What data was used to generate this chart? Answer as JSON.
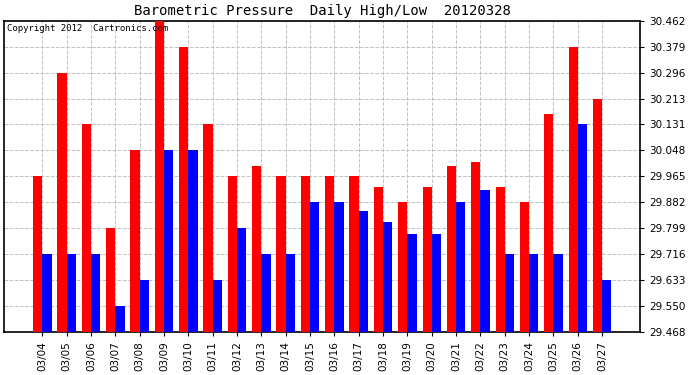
{
  "title": "Barometric Pressure  Daily High/Low  20120328",
  "copyright": "Copyright 2012  Cartronics.com",
  "categories": [
    "03/04",
    "03/05",
    "03/06",
    "03/07",
    "03/08",
    "03/09",
    "03/10",
    "03/11",
    "03/12",
    "03/13",
    "03/14",
    "03/15",
    "03/16",
    "03/17",
    "03/18",
    "03/19",
    "03/20",
    "03/21",
    "03/22",
    "03/23",
    "03/24",
    "03/25",
    "03/26",
    "03/27"
  ],
  "highs": [
    29.965,
    30.296,
    30.131,
    29.8,
    30.048,
    30.462,
    30.379,
    30.131,
    29.965,
    29.999,
    29.965,
    29.965,
    29.965,
    29.965,
    29.93,
    29.882,
    29.93,
    29.999,
    30.01,
    29.93,
    29.882,
    30.165,
    30.379,
    30.213
  ],
  "lows": [
    29.716,
    29.716,
    29.716,
    29.55,
    29.633,
    30.048,
    30.048,
    29.633,
    29.799,
    29.716,
    29.716,
    29.882,
    29.882,
    29.853,
    29.82,
    29.782,
    29.782,
    29.882,
    29.92,
    29.716,
    29.716,
    29.716,
    30.131,
    29.633
  ],
  "high_color": "#ff0000",
  "low_color": "#0000ff",
  "background_color": "#ffffff",
  "grid_color": "#c0c0c0",
  "ylim_min": 29.468,
  "ylim_max": 30.462,
  "yticks": [
    29.468,
    29.55,
    29.633,
    29.716,
    29.799,
    29.882,
    29.965,
    30.048,
    30.131,
    30.213,
    30.296,
    30.379,
    30.462
  ],
  "baseline": 29.468
}
